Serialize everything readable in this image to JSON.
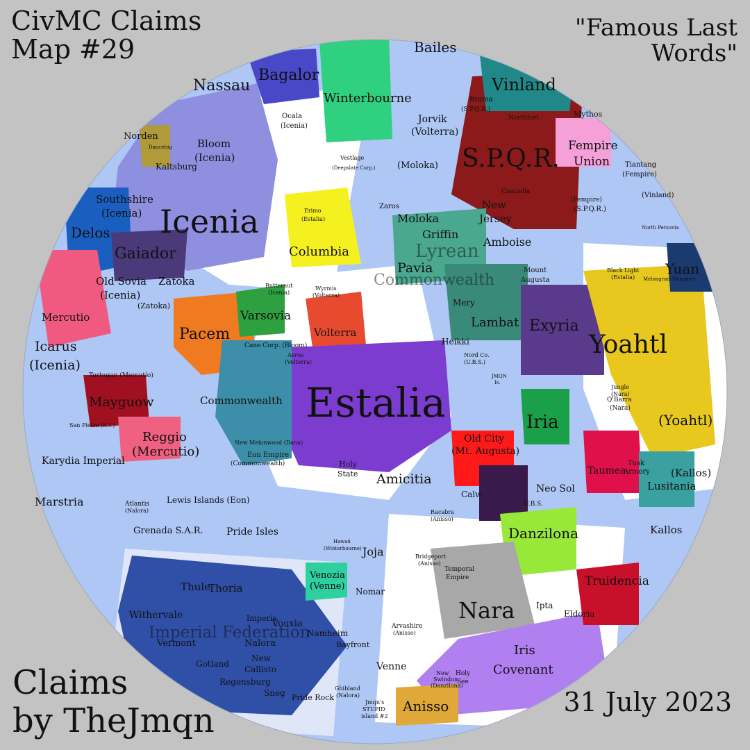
{
  "header": {
    "title_line1": "CivMC Claims",
    "title_line2": "Map #29",
    "quote_line1": "\"Famous Last",
    "quote_line2": "Words\""
  },
  "footer": {
    "credit_line1": "Claims",
    "credit_line2": "by TheJmqn",
    "date": "31 July 2023"
  },
  "colors": {
    "background": "#c3c3c3",
    "ocean": "#aec7f5",
    "land": "#ffffff"
  },
  "regions": [
    {
      "name": "Icenia",
      "color": "#8f8fe0"
    },
    {
      "name": "Estalia",
      "color": "#7d3cd0"
    },
    {
      "name": "S.P.Q.R.",
      "color": "#8c1a1a"
    },
    {
      "name": "Yoahtl",
      "color": "#e8c81e"
    },
    {
      "name": "Nara",
      "color": "#a8a8a8"
    },
    {
      "name": "Iris Covenant",
      "color": "#b07ff0"
    },
    {
      "name": "Danzilona",
      "color": "#98e83a"
    },
    {
      "name": "Pacem",
      "color": "#f07a20"
    },
    {
      "name": "Commonwealth",
      "color": "#3d8ea8"
    },
    {
      "name": "Winterbourne",
      "color": "#2fd080"
    },
    {
      "name": "Bagalor",
      "color": "#4848c8"
    },
    {
      "name": "Columbia",
      "color": "#f5f020"
    },
    {
      "name": "Exyria",
      "color": "#5a3a8a"
    },
    {
      "name": "Lambat",
      "color": "#3a8a7a"
    },
    {
      "name": "Mercutio",
      "color": "#f05a80"
    },
    {
      "name": "Mayguow",
      "color": "#a01020"
    },
    {
      "name": "Imperial Federation",
      "color": "#3050a8"
    },
    {
      "name": "Anisso",
      "color": "#e0a838"
    },
    {
      "name": "Truidencia",
      "color": "#c8102a"
    },
    {
      "name": "Vinland",
      "color": "#208888"
    }
  ],
  "labels": {
    "major": {
      "icenia": "Icenia",
      "estalia": "Estalia",
      "spqr": "S.P.Q.R.",
      "yoahtl": "Yoahtl",
      "nara": "Nara"
    },
    "medium": {
      "nassau": "Nassau",
      "bagalor": "Bagalor",
      "winterbourne": "Winterbourne",
      "vinland": "Vinland",
      "bailes": "Bailes",
      "fempire": "Fempire",
      "union": "Union",
      "delos": "Delos",
      "gaiador": "Gaiador",
      "columbia": "Columbia",
      "pacem": "Pacem",
      "varsovia": "Varsovia",
      "volterra": "Volterra",
      "moloka": "Moloka",
      "griffin": "Griffin",
      "pavia": "Pavia",
      "lyrean": "Lyrean",
      "commonwealth_lyrean": "Commonwealth",
      "amboise": "Amboise",
      "lambat": "Lambat",
      "exyria": "Exyria",
      "yuan": "Yuan",
      "iria": "Iria",
      "yoahtl_paren": "(Yoahtl)",
      "commonwealth": "Commonwealth",
      "mercutio": "Mercutio",
      "icarus": "Icarus",
      "icarus_sub": "(Icenia)",
      "mayguow": "Mayguow",
      "reggio": "Reggio",
      "reggio_sub": "(Mercutio)",
      "amicitia": "Amicitia",
      "old_city": "Old City",
      "mt_augusta": "(Mt. Augusta)",
      "neo_sol": "Neo Sol",
      "danzilona": "Danzilona",
      "lusitania": "Lusitania",
      "kallos_paren": "(Kallos)",
      "kallos": "Kallos",
      "taumea": "Taumea",
      "truidencia": "Truidencia",
      "marstria": "Marstria",
      "karydia": "Karydia Imperial",
      "lewis_islands": "Lewis Islands (Eon)",
      "grenada": "Grenada S.A.R.",
      "pride_isles": "Pride Isles",
      "joja": "Joja",
      "venozia": "Venozia",
      "venozia_sub": "(Venne)",
      "nomar": "Nomar",
      "thule": "Thule",
      "thoria": "Thoria",
      "withervale": "Withervale",
      "vermont": "Vermont",
      "imperial_federation": "Imperial Federation",
      "gotland": "Gotland",
      "nalora": "Nalora",
      "vouxia": "Vouxia",
      "imperia": "Imperia",
      "namheim": "Namheim",
      "bayfront": "Bayfront",
      "new_callisto": "New",
      "new_callisto2": "Callisto",
      "regensburg": "Regensburg",
      "sneg": "Sneg",
      "pride_rock": "Pride Rock",
      "venne": "Venne",
      "anisso": "Anisso",
      "iris": "Iris",
      "covenant": "Covenant",
      "ipta": "Ipta",
      "eldoria": "Eldoria",
      "norden": "Norden",
      "kaltsburg": "Kaltsburg",
      "bloom": "Bloom",
      "bloom_sub": "(Icenia)",
      "southshire": "Southshire",
      "southshire_sub": "(Icenia)",
      "old_sovia": "Old Sovia",
      "old_sovia_sub": "(Icenia)",
      "zatoka": "Zatoka",
      "zatoka_paren": "(Zatoka)",
      "jorvik": "Jorvik",
      "jorvik_sub": "(Volterra)",
      "new_jersey": "New",
      "new_jersey2": "Jersey",
      "moloka_paren": "(Moloka)",
      "heikki": "Heikki",
      "mery": "Mery",
      "calw": "Calw",
      "holy_state": "Holy",
      "holy_state2": "State"
    },
    "small": {
      "ocala": "Ocala",
      "ocala_sub": "(Icenia)",
      "tiantang": "Tiantang",
      "tiantang_sub": "(Fempire)",
      "vinland_paren": "(Vinland)",
      "fempire_paren": "(Fempire)",
      "spqr_paren": "(S.P.Q.R.)",
      "brama": "Brama",
      "brama_sub": "(S.P.Q.R.)",
      "northfort": "Northfort",
      "mythos": "Mythos",
      "cascadia": "Cascadia",
      "zaros": "Zaros",
      "mount_augusta": "Mount",
      "mount_augusta2": "Augusta",
      "nord_co": "Nord Co.",
      "nord_co_sub": "(U.B.S.)",
      "cane_corp": "Cane Corp. (Bloom)",
      "aeros": "Aeros",
      "aeros_sub": "(Volterra)",
      "new_melonwood": "New Melonwood (Dana)",
      "eon_empire": "Eon Empire",
      "eon_empire_sub": "(Commonwealth)",
      "tortugan": "Tortugan (Mercutio)",
      "san_pietro": "San Pietro (K.I.)",
      "atlantis": "Atlantis",
      "atlantis_sub": "(Nalora)",
      "racabra": "Racabra",
      "racabra_sub": "(Anisso)",
      "bridgeport": "Bridgeport",
      "bridgeport_sub": "(Anisso)",
      "temporal_empire": "Temporal",
      "temporal_empire2": "Empire",
      "ubs": "U.B.S.",
      "jungle": "Jungle",
      "jungle_sub": "(Nara)",
      "qbarra": "Q'Barra",
      "qbarra_sub": "(Nara)",
      "tusk": "Tusk",
      "armory": "Armory",
      "arvashire": "Arvashire",
      "arvashire_sub": "(Anisso)",
      "new_swindon": "New",
      "new_swindon2": "Swindon",
      "new_swindon3": "(Danzilona)",
      "holy_see": "Holy",
      "holy_see2": "See",
      "jmqns_island": "Jmqn's",
      "jmqns_island2": "STUPID",
      "jmqns_island3": "island #2",
      "ghibland": "Ghibland",
      "ghibland_sub": "(Nalora)",
      "melongrad": "Melongrad (Fempire)",
      "black_light": "Black Light",
      "black_light_sub": "(Estalia)",
      "north_persuvia": "North Persuvia",
      "dancetog": "Dancetog",
      "wyrmis": "Wyrmis",
      "wyrmis_sub": "(Volterra)",
      "butternut": "Butternut",
      "butternut_sub": "(Icenia)",
      "erimo": "Erimo",
      "erimo_sub": "(Estalia)",
      "vestlage": "Vestlage",
      "vestlage_sub": "(Deepslate Corp.)",
      "jmqn_is": "JMQN",
      "jmqn_is2": "Is.",
      "hawaii": "Hawaii",
      "hawaii_sub": "(Winterbourne)"
    }
  }
}
